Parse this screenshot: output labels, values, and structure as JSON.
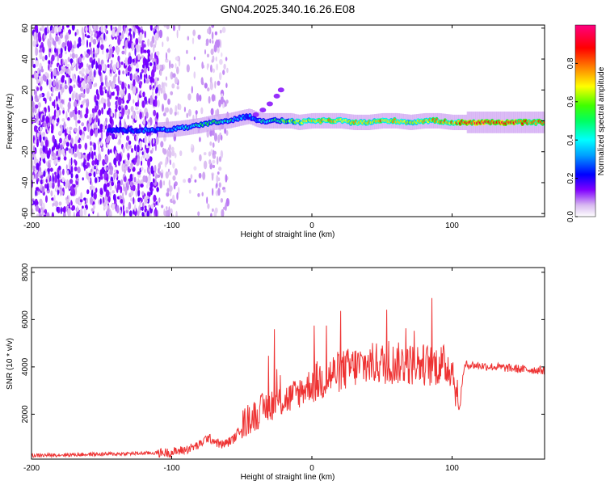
{
  "title": "GN04.2025.340.16.26.E08",
  "chart_data": [
    {
      "type": "heatmap",
      "xlabel": "Height of straight line (km)",
      "ylabel": "Frequency (Hz)",
      "xlim": [
        -200,
        166
      ],
      "ylim": [
        -62,
        62
      ],
      "xticks": [
        -200,
        -100,
        0,
        100
      ],
      "yticks": [
        -60,
        -40,
        -20,
        0,
        20,
        40,
        60
      ],
      "colorbar": {
        "label": "Normalized spectral amplitude",
        "range": [
          0,
          1
        ],
        "ticks": [
          0.0,
          0.2,
          0.4,
          0.6,
          0.8
        ],
        "colormap": [
          "#ffffff",
          "#d8b8f0",
          "#8000ff",
          "#0000ff",
          "#00e0ff",
          "#00ff00",
          "#ffff00",
          "#ff8000",
          "#ff0000",
          "#ff0080"
        ]
      },
      "ridge": {
        "description_values": "peak frequency (Hz) vs height (km)",
        "x": [
          -145,
          -110,
          -95,
          -80,
          -70,
          -60,
          -50,
          -45,
          -40,
          -35,
          -30,
          -25,
          -20,
          -15,
          -10,
          0,
          10,
          20,
          30,
          40,
          50,
          60,
          70,
          80,
          90,
          100,
          110,
          120,
          130,
          140,
          150,
          166
        ],
        "y": [
          -6,
          -6,
          -5,
          -3,
          -1,
          0,
          2,
          3,
          1,
          0,
          0,
          0,
          0,
          0,
          -1,
          0,
          0,
          0,
          -1,
          -1,
          0,
          0,
          -1,
          0,
          0,
          -1,
          -1,
          -1,
          -1,
          -1,
          -1,
          -1
        ],
        "amplitude": [
          0.2,
          0.3,
          0.35,
          0.45,
          0.5,
          0.45,
          0.35,
          0.3,
          0.35,
          0.4,
          0.45,
          0.5,
          0.55,
          0.6,
          0.65,
          0.7,
          0.75,
          0.75,
          0.7,
          0.7,
          0.75,
          0.7,
          0.7,
          0.7,
          0.75,
          0.75,
          0.85,
          0.9,
          0.9,
          0.9,
          0.85,
          0.8
        ]
      },
      "chirp_branch": {
        "x": [
          -45,
          -40,
          -35,
          -30,
          -25,
          -22
        ],
        "y": [
          2,
          4,
          7,
          11,
          16,
          20
        ]
      }
    },
    {
      "type": "line",
      "xlabel": "Height of straight line (km)",
      "ylabel": "SNR (10 * v/v)",
      "xlim": [
        -200,
        166
      ],
      "ylim": [
        100,
        8200
      ],
      "xticks": [
        -200,
        -100,
        0,
        100
      ],
      "yticks": [
        2000,
        4000,
        6000,
        8000
      ],
      "series": [
        {
          "color": "#ee3333",
          "x": [
            -200,
            -180,
            -160,
            -140,
            -120,
            -100,
            -90,
            -80,
            -75,
            -70,
            -65,
            -60,
            -55,
            -50,
            -45,
            -40,
            -35,
            -30,
            -25,
            -20,
            -15,
            -10,
            -5,
            0,
            5,
            10,
            15,
            20,
            25,
            30,
            35,
            40,
            45,
            50,
            55,
            60,
            65,
            70,
            75,
            80,
            85,
            90,
            95,
            100,
            103,
            105,
            108,
            110,
            120,
            130,
            140,
            150,
            166
          ],
          "y": [
            250,
            280,
            300,
            320,
            350,
            380,
            500,
            700,
            1000,
            900,
            700,
            800,
            1000,
            1500,
            1800,
            2000,
            2200,
            2400,
            2500,
            2600,
            2700,
            2900,
            3100,
            3300,
            3400,
            3500,
            3700,
            3800,
            3900,
            4000,
            4050,
            4100,
            4150,
            4150,
            4100,
            4150,
            4150,
            4100,
            4150,
            4100,
            4050,
            4100,
            4050,
            4000,
            3000,
            2000,
            3800,
            4100,
            4050,
            4000,
            3950,
            3900,
            3850
          ]
        }
      ]
    }
  ]
}
